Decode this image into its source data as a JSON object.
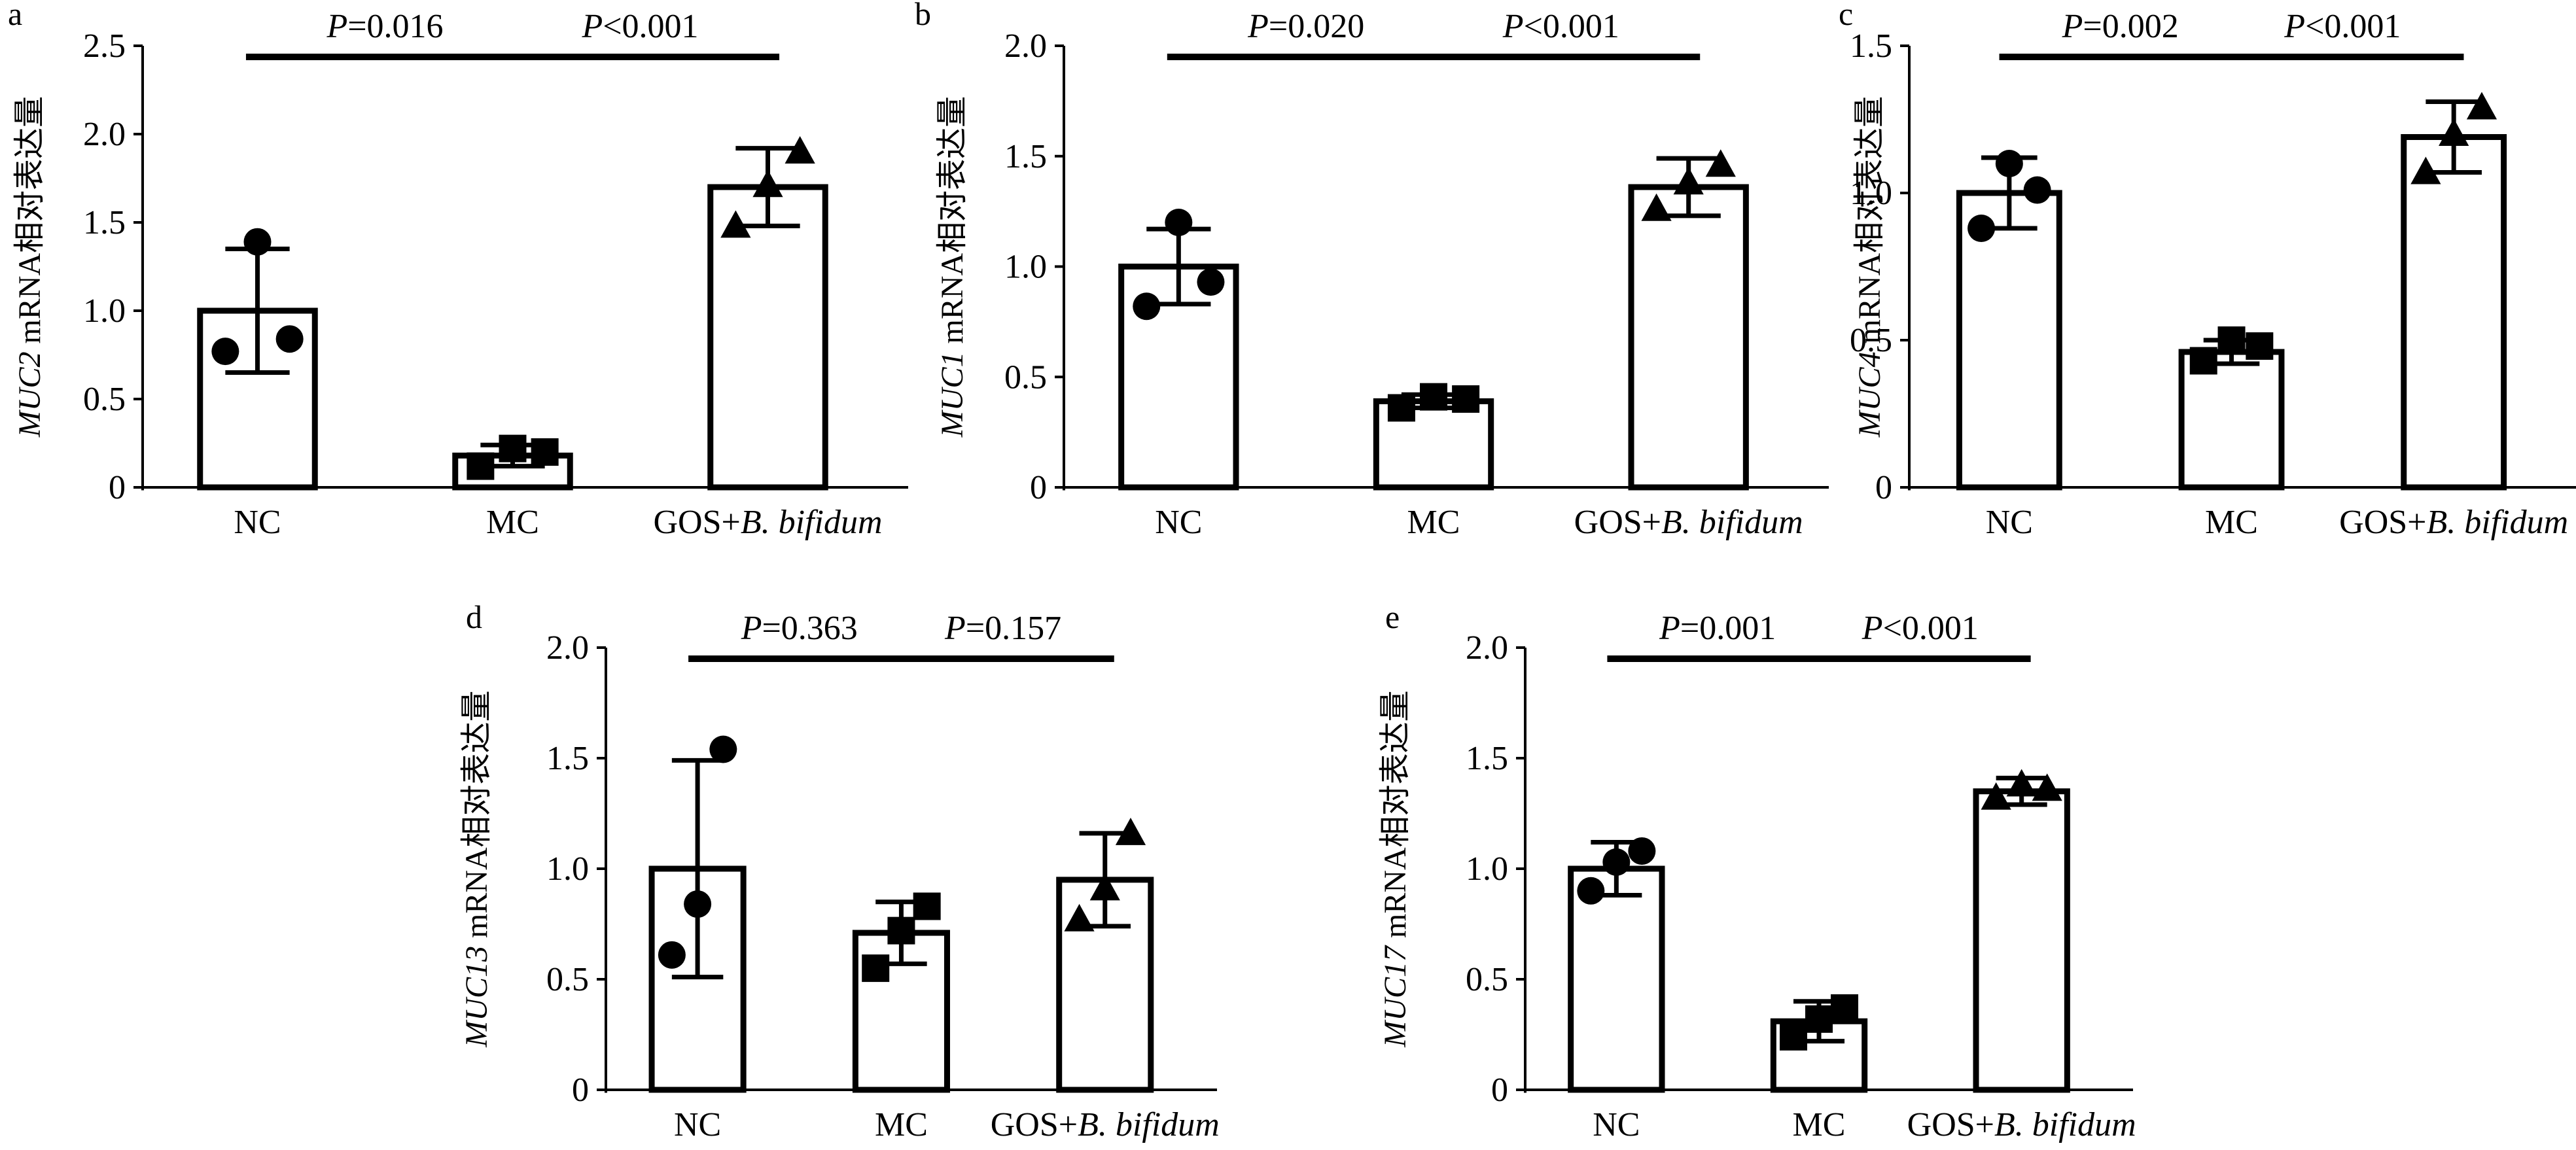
{
  "figure": {
    "domain": "Chart"
  },
  "chart_data": [
    {
      "type": "bar",
      "panel": "a",
      "gene": "MUC2",
      "ylabel_suffix": " mRNA相对表达量",
      "categories": [
        "NC",
        "MC",
        "GOS+B. bifidum"
      ],
      "values": [
        1.0,
        0.18,
        1.7
      ],
      "error": [
        0.35,
        0.06,
        0.22
      ],
      "points": [
        [
          0.77,
          1.39,
          0.84
        ],
        [
          0.12,
          0.22,
          0.2
        ],
        [
          1.48,
          1.71,
          1.9
        ]
      ],
      "markers": [
        "circle",
        "square",
        "triangle"
      ],
      "ylim": [
        0,
        2.5
      ],
      "yticks": [
        0,
        0.5,
        1.0,
        1.5,
        2.0,
        2.5
      ],
      "ytick_labels": [
        "0",
        "0.5",
        "1.0",
        "1.5",
        "2.0",
        "2.5"
      ],
      "comparisons": [
        {
          "from": 0,
          "to": 1,
          "label_italic": "P",
          "label_rest": "=0.016"
        },
        {
          "from": 1,
          "to": 2,
          "label_italic": "P",
          "label_rest": "<0.001"
        }
      ]
    },
    {
      "type": "bar",
      "panel": "b",
      "gene": "MUC1",
      "ylabel_suffix": " mRNA相对表达量",
      "categories": [
        "NC",
        "MC",
        "GOS+B. bifidum"
      ],
      "values": [
        1.0,
        0.39,
        1.36
      ],
      "error": [
        0.17,
        0.03,
        0.13
      ],
      "points": [
        [
          0.82,
          1.2,
          0.93
        ],
        [
          0.36,
          0.41,
          0.4
        ],
        [
          1.26,
          1.38,
          1.46
        ]
      ],
      "markers": [
        "circle",
        "square",
        "triangle"
      ],
      "ylim": [
        0,
        2.0
      ],
      "yticks": [
        0,
        0.5,
        1.0,
        1.5,
        2.0
      ],
      "ytick_labels": [
        "0",
        "0.5",
        "1.0",
        "1.5",
        "2.0"
      ],
      "comparisons": [
        {
          "from": 0,
          "to": 1,
          "label_italic": "P",
          "label_rest": "=0.020"
        },
        {
          "from": 1,
          "to": 2,
          "label_italic": "P",
          "label_rest": "<0.001"
        }
      ]
    },
    {
      "type": "bar",
      "panel": "c",
      "gene": "MUC4",
      "ylabel_suffix": " mRNA相对表达量",
      "categories": [
        "NC",
        "MC",
        "GOS+B. bifidum"
      ],
      "values": [
        1.0,
        0.46,
        1.19
      ],
      "error": [
        0.12,
        0.04,
        0.12
      ],
      "points": [
        [
          0.88,
          1.1,
          1.01
        ],
        [
          0.43,
          0.5,
          0.48
        ],
        [
          1.07,
          1.2,
          1.29
        ]
      ],
      "markers": [
        "circle",
        "square",
        "triangle"
      ],
      "ylim": [
        0,
        1.5
      ],
      "yticks": [
        0,
        0.5,
        1.0,
        1.5
      ],
      "ytick_labels": [
        "0",
        "0.5",
        "1.0",
        "1.5"
      ],
      "comparisons": [
        {
          "from": 0,
          "to": 1,
          "label_italic": "P",
          "label_rest": "=0.002"
        },
        {
          "from": 1,
          "to": 2,
          "label_italic": "P",
          "label_rest": "<0.001"
        }
      ]
    },
    {
      "type": "bar",
      "panel": "d",
      "gene": "MUC13",
      "ylabel_suffix": " mRNA相对表达量",
      "categories": [
        "NC",
        "MC",
        "GOS+B. bifidum"
      ],
      "values": [
        1.0,
        0.71,
        0.95
      ],
      "error": [
        0.49,
        0.14,
        0.21
      ],
      "points": [
        [
          0.61,
          0.84,
          1.54
        ],
        [
          0.55,
          0.72,
          0.83
        ],
        [
          0.77,
          0.91,
          1.16
        ]
      ],
      "markers": [
        "circle",
        "square",
        "triangle"
      ],
      "ylim": [
        0,
        2.0
      ],
      "yticks": [
        0,
        0.5,
        1.0,
        1.5,
        2.0
      ],
      "ytick_labels": [
        "0",
        "0.5",
        "1.0",
        "1.5",
        "2.0"
      ],
      "comparisons": [
        {
          "from": 0,
          "to": 1,
          "label_italic": "P",
          "label_rest": "=0.363"
        },
        {
          "from": 1,
          "to": 2,
          "label_italic": "P",
          "label_rest": "=0.157"
        }
      ]
    },
    {
      "type": "bar",
      "panel": "e",
      "gene": "MUC17",
      "ylabel_suffix": " mRNA相对表达量",
      "categories": [
        "NC",
        "MC",
        "GOS+B. bifidum"
      ],
      "values": [
        1.0,
        0.31,
        1.35
      ],
      "error": [
        0.12,
        0.09,
        0.06
      ],
      "points": [
        [
          0.9,
          1.03,
          1.08
        ],
        [
          0.24,
          0.32,
          0.37
        ],
        [
          1.32,
          1.38,
          1.36
        ]
      ],
      "markers": [
        "circle",
        "square",
        "triangle"
      ],
      "ylim": [
        0,
        2.0
      ],
      "yticks": [
        0,
        0.5,
        1.0,
        1.5,
        2.0
      ],
      "ytick_labels": [
        "0",
        "0.5",
        "1.0",
        "1.5",
        "2.0"
      ],
      "comparisons": [
        {
          "from": 0,
          "to": 1,
          "label_italic": "P",
          "label_rest": "=0.001"
        },
        {
          "from": 1,
          "to": 2,
          "label_italic": "P",
          "label_rest": "<0.001"
        }
      ]
    }
  ]
}
